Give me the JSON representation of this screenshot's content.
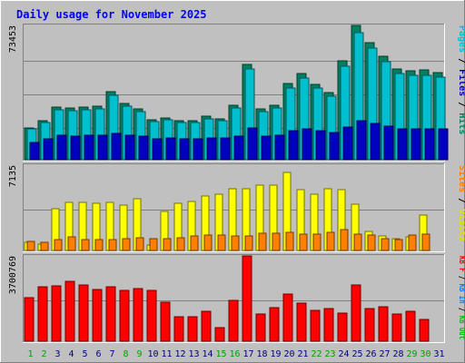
{
  "chart_data": {
    "type": "bar",
    "title": "Daily usage for November 2025",
    "categories": [
      "1",
      "2",
      "3",
      "4",
      "5",
      "6",
      "7",
      "8",
      "9",
      "10",
      "11",
      "12",
      "13",
      "14",
      "15",
      "16",
      "17",
      "18",
      "19",
      "20",
      "21",
      "22",
      "23",
      "24",
      "25",
      "26",
      "27",
      "28",
      "29",
      "30",
      "31"
    ],
    "weekend_days": [
      1,
      2,
      8,
      9,
      15,
      16,
      22,
      23,
      29,
      30
    ],
    "top_panel": {
      "ymax_label": "73453",
      "ymax": 73453,
      "grid": true,
      "axis_label_parts": [
        {
          "text": "Pages",
          "color": "#00c0d0"
        },
        {
          "text": " / ",
          "color": "#000000"
        },
        {
          "text": "Files",
          "color": "#0000c0"
        },
        {
          "text": " / ",
          "color": "#000000"
        },
        {
          "text": "Hits",
          "color": "#008060"
        }
      ],
      "series": [
        {
          "name": "Hits",
          "color": "#008060",
          "values": [
            17400,
            21400,
            28900,
            28100,
            28900,
            29200,
            37200,
            30800,
            27900,
            22000,
            23000,
            21500,
            21300,
            23700,
            22500,
            30000,
            52000,
            27800,
            29900,
            41500,
            47100,
            41300,
            36900,
            54100,
            73400,
            64200,
            56600,
            49700,
            48500,
            48900,
            47800
          ]
        },
        {
          "name": "Files",
          "color": "#00c0d0",
          "values": [
            16700,
            20300,
            27400,
            26600,
            27300,
            27700,
            35200,
            29200,
            26500,
            20900,
            21800,
            20300,
            20200,
            22400,
            21300,
            28400,
            49400,
            26400,
            28300,
            39300,
            44600,
            39100,
            34900,
            51300,
            69700,
            60900,
            53700,
            47200,
            46000,
            46400,
            45300
          ]
        },
        {
          "name": "Pages",
          "color": "#0000c0",
          "values": [
            9600,
            11400,
            13200,
            12900,
            13200,
            13300,
            14300,
            13500,
            13100,
            11600,
            11800,
            11400,
            11400,
            12000,
            11700,
            13100,
            17200,
            12900,
            13400,
            15800,
            16700,
            15700,
            14900,
            17900,
            21200,
            19800,
            18500,
            17100,
            16900,
            17000,
            16800
          ]
        }
      ]
    },
    "middle_panel": {
      "ymax_label": "7135",
      "ymax": 7135,
      "grid": true,
      "axis_label_parts": [
        {
          "text": "Sites",
          "color": "#ff8000"
        },
        {
          "text": " / ",
          "color": "#000000"
        },
        {
          "text": "Visits",
          "color": "#e0e000"
        }
      ],
      "series": [
        {
          "name": "Visits",
          "color": "#ffff00",
          "values": [
            650,
            550,
            3480,
            4030,
            4030,
            3980,
            4030,
            3830,
            4300,
            470,
            3280,
            3930,
            4130,
            4570,
            4710,
            5130,
            5170,
            5500,
            5500,
            6510,
            5050,
            4700,
            5130,
            5120,
            3870,
            1600,
            1230,
            1020,
            1110,
            2930,
            null
          ]
        },
        {
          "name": "Sites",
          "color": "#ff8000",
          "values": [
            750,
            700,
            900,
            1120,
            930,
            900,
            930,
            950,
            1080,
            1000,
            1000,
            1040,
            1200,
            1300,
            1280,
            1230,
            1230,
            1460,
            1430,
            1520,
            1400,
            1370,
            1490,
            1740,
            1360,
            1280,
            950,
            920,
            1300,
            1400,
            null
          ]
        }
      ]
    },
    "bottom_panel": {
      "ymax_label": "3700769",
      "ymax": 3700769,
      "grid": true,
      "axis_label_parts": [
        {
          "text": "KB F",
          "color": "#ff0000"
        },
        {
          "text": " / ",
          "color": "#000000"
        },
        {
          "text": "KB In",
          "color": "#0080ff"
        },
        {
          "text": " / ",
          "color": "#000000"
        },
        {
          "text": "KB Out",
          "color": "#00c000"
        }
      ],
      "series": [
        {
          "name": "KB F",
          "color": "#ff0000",
          "values": [
            1900000,
            2350000,
            2400000,
            2580000,
            2450000,
            2230000,
            2350000,
            2210000,
            2300000,
            2210000,
            1710000,
            1080000,
            1080000,
            1300000,
            600000,
            1760000,
            3700769,
            1200000,
            1450000,
            2030000,
            1670000,
            1350000,
            1400000,
            1210000,
            2450000,
            1400000,
            1480000,
            1170000,
            1310000,
            950000,
            null
          ]
        }
      ]
    },
    "colors": {
      "background": "#c0c0c0",
      "plot_background": "#c0c0c0",
      "grid": "#808080",
      "title": "#0000ff",
      "day_label": "#000080",
      "weekend_day_label": "#00a000",
      "border_dark": "#808080",
      "border_light": "#ffffff"
    }
  }
}
